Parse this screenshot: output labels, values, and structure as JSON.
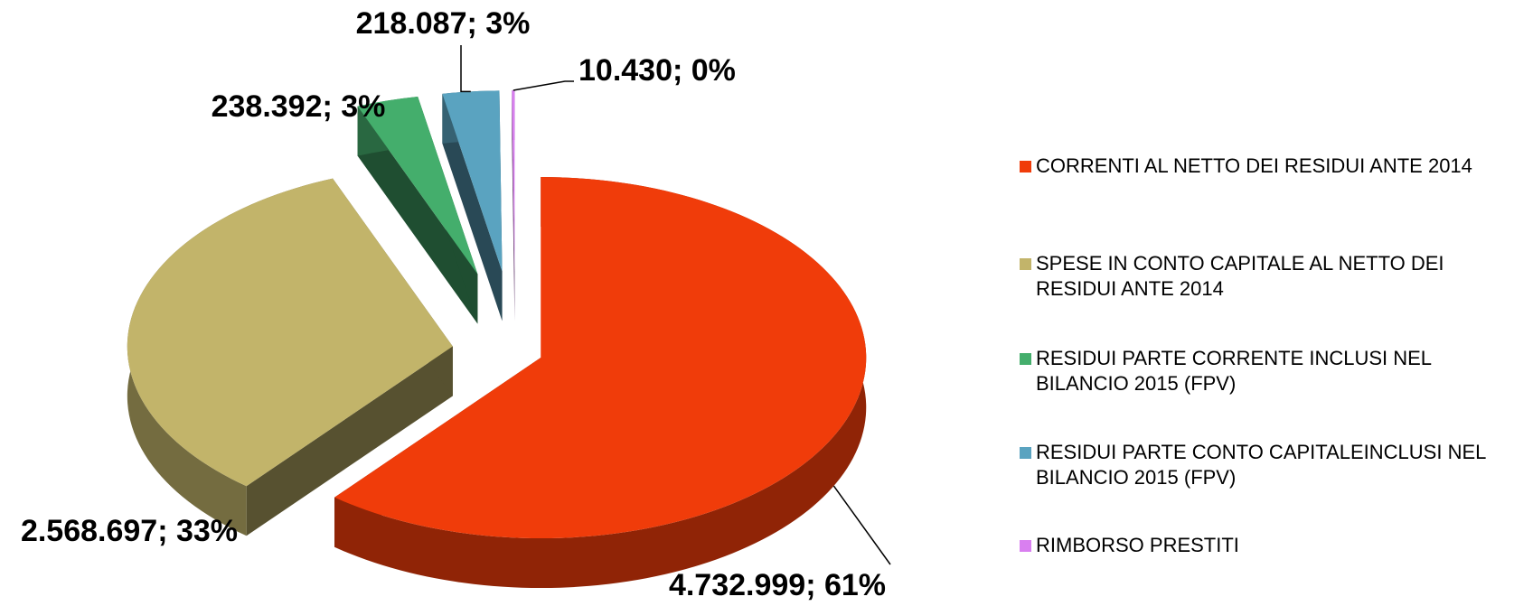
{
  "chart_data": {
    "type": "pie",
    "categories": [
      "CORRENTI AL NETTO DEI RESIDUI ANTE 2014",
      "SPESE IN CONTO CAPITALE AL NETTO DEI RESIDUI ANTE 2014",
      "RESIDUI PARTE CORRENTE INCLUSI NEL BILANCIO 2015 (FPV)",
      "RESIDUI PARTE CONTO CAPITALEINCLUSI NEL BILANCIO 2015 (FPV)",
      "RIMBORSO PRESTITI"
    ],
    "values": [
      4732999,
      2568697,
      238392,
      218087,
      10430
    ],
    "value_labels": [
      "4.732.999; 61%",
      "2.568.697; 33%",
      "238.392; 3%",
      "218.087; 3%",
      "10.430; 0%"
    ],
    "colors": [
      "#f03c0a",
      "#c2b46a",
      "#44ae6c",
      "#5aa3c0",
      "#d97ff0"
    ]
  }
}
